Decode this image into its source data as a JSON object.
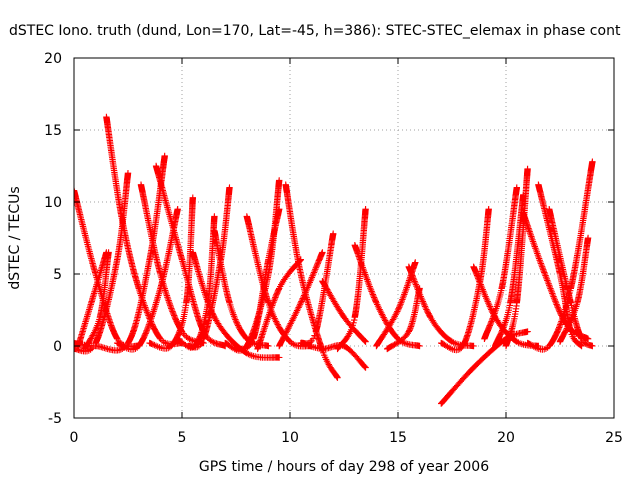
{
  "chart_data": {
    "type": "scatter",
    "title": "dSTEC Iono. truth (dund, Lon=170, Lat=-45, h=386): STEC-STEC_elemax in phase cont",
    "xlabel": "GPS time / hours of day 298 of year 2006",
    "ylabel": "dSTEC  / TECUs",
    "xlim": [
      0,
      25
    ],
    "ylim": [
      -5,
      20
    ],
    "xticks": [
      "0",
      "5",
      "10",
      "15",
      "20",
      "25"
    ],
    "yticks": [
      "-5",
      "0",
      "5",
      "10",
      "15",
      "20"
    ],
    "grid": true,
    "marker": "+",
    "color": "#ff0000",
    "passes": [
      [
        [
          0.0,
          10.8
        ],
        [
          1.0,
          5.0
        ],
        [
          2.0,
          0.5
        ],
        [
          3.0,
          0.0
        ]
      ],
      [
        [
          0.2,
          0.0
        ],
        [
          0.8,
          3.0
        ],
        [
          1.5,
          6.5
        ]
      ],
      [
        [
          0.0,
          -0.2
        ],
        [
          1.0,
          0.2
        ],
        [
          2.0,
          6.0
        ],
        [
          2.5,
          12.0
        ]
      ],
      [
        [
          1.5,
          15.9
        ],
        [
          2.2,
          9.0
        ],
        [
          3.0,
          4.0
        ],
        [
          4.0,
          0.5
        ],
        [
          5.0,
          0.2
        ]
      ],
      [
        [
          0.5,
          -0.2
        ],
        [
          1.2,
          2.0
        ],
        [
          1.6,
          6.5
        ]
      ],
      [
        [
          0.0,
          0.2
        ],
        [
          1.0,
          0.0
        ],
        [
          2.5,
          0.2
        ],
        [
          3.5,
          6.0
        ],
        [
          4.2,
          13.2
        ]
      ],
      [
        [
          3.1,
          11.2
        ],
        [
          4.0,
          5.0
        ],
        [
          5.0,
          1.0
        ],
        [
          6.0,
          0.2
        ]
      ],
      [
        [
          2.0,
          0.2
        ],
        [
          3.0,
          0.0
        ],
        [
          4.0,
          4.0
        ],
        [
          4.8,
          9.5
        ]
      ],
      [
        [
          3.5,
          0.2
        ],
        [
          4.5,
          0.0
        ],
        [
          5.2,
          3.0
        ],
        [
          5.5,
          10.3
        ]
      ],
      [
        [
          3.8,
          12.5
        ],
        [
          5.0,
          6.0
        ],
        [
          6.0,
          1.0
        ],
        [
          7.0,
          0.0
        ]
      ],
      [
        [
          4.8,
          0.5
        ],
        [
          5.6,
          0.0
        ],
        [
          6.2,
          3.0
        ],
        [
          6.5,
          9.0
        ]
      ],
      [
        [
          5.3,
          0.0
        ],
        [
          6.0,
          0.5
        ],
        [
          6.8,
          6.0
        ],
        [
          7.2,
          11.0
        ]
      ],
      [
        [
          5.5,
          6.5
        ],
        [
          6.5,
          2.0
        ],
        [
          8.0,
          -0.5
        ],
        [
          9.5,
          -0.8
        ]
      ],
      [
        [
          6.5,
          8.0
        ],
        [
          7.2,
          3.0
        ],
        [
          8.0,
          0.5
        ],
        [
          9.0,
          0.0
        ]
      ],
      [
        [
          7.0,
          0.2
        ],
        [
          8.0,
          0.0
        ],
        [
          9.0,
          5.0
        ],
        [
          9.5,
          11.5
        ]
      ],
      [
        [
          7.5,
          -0.2
        ],
        [
          8.3,
          0.5
        ],
        [
          9.0,
          6.0
        ],
        [
          9.5,
          9.5
        ]
      ],
      [
        [
          8.0,
          9.0
        ],
        [
          9.0,
          3.0
        ],
        [
          10.0,
          0.3
        ],
        [
          11.0,
          0.0
        ]
      ],
      [
        [
          8.5,
          -0.2
        ],
        [
          9.5,
          4.0
        ],
        [
          10.5,
          6.0
        ]
      ],
      [
        [
          9.8,
          11.2
        ],
        [
          10.5,
          5.0
        ],
        [
          11.5,
          -0.3
        ],
        [
          12.2,
          -2.2
        ]
      ],
      [
        [
          9.5,
          0.0
        ],
        [
          10.5,
          3.0
        ],
        [
          11.5,
          6.5
        ]
      ],
      [
        [
          10.5,
          0.2
        ],
        [
          11.2,
          1.0
        ],
        [
          12.0,
          7.8
        ]
      ],
      [
        [
          10.5,
          0.2
        ],
        [
          11.5,
          -0.2
        ],
        [
          12.5,
          0.0
        ],
        [
          13.5,
          -1.5
        ]
      ],
      [
        [
          11.5,
          4.5
        ],
        [
          12.5,
          2.0
        ],
        [
          13.5,
          0.3
        ]
      ],
      [
        [
          12.2,
          -0.2
        ],
        [
          13.0,
          2.0
        ],
        [
          13.5,
          9.5
        ]
      ],
      [
        [
          13.0,
          7.0
        ],
        [
          14.0,
          3.0
        ],
        [
          15.0,
          0.5
        ],
        [
          16.0,
          0.0
        ]
      ],
      [
        [
          14.5,
          -0.2
        ],
        [
          15.5,
          1.0
        ],
        [
          16.0,
          4.0
        ]
      ],
      [
        [
          14.0,
          0.0
        ],
        [
          15.0,
          2.5
        ],
        [
          15.8,
          5.8
        ]
      ],
      [
        [
          15.5,
          5.5
        ],
        [
          16.5,
          2.0
        ],
        [
          17.5,
          0.3
        ],
        [
          18.5,
          0.0
        ]
      ],
      [
        [
          17.0,
          -4.0
        ],
        [
          18.5,
          -1.5
        ],
        [
          20.0,
          0.5
        ],
        [
          21.0,
          1.0
        ]
      ],
      [
        [
          17.0,
          0.2
        ],
        [
          18.0,
          0.0
        ],
        [
          18.8,
          4.5
        ],
        [
          19.2,
          9.5
        ]
      ],
      [
        [
          18.5,
          5.5
        ],
        [
          19.5,
          2.0
        ],
        [
          20.5,
          0.3
        ],
        [
          21.5,
          0.0
        ]
      ],
      [
        [
          19.0,
          0.5
        ],
        [
          19.8,
          4.0
        ],
        [
          20.5,
          11.0
        ]
      ],
      [
        [
          19.5,
          0.0
        ],
        [
          20.2,
          3.0
        ],
        [
          20.8,
          10.5
        ]
      ],
      [
        [
          20.0,
          0.0
        ],
        [
          20.5,
          3.0
        ],
        [
          21.0,
          12.3
        ]
      ],
      [
        [
          21.5,
          11.2
        ],
        [
          22.5,
          5.0
        ],
        [
          23.0,
          1.0
        ],
        [
          23.5,
          0.0
        ]
      ],
      [
        [
          21.0,
          0.2
        ],
        [
          22.0,
          0.0
        ],
        [
          23.0,
          4.0
        ],
        [
          24.0,
          12.8
        ]
      ],
      [
        [
          22.0,
          9.5
        ],
        [
          23.0,
          3.0
        ],
        [
          23.5,
          0.5
        ],
        [
          24.0,
          0.0
        ]
      ],
      [
        [
          22.5,
          0.3
        ],
        [
          23.3,
          3.0
        ],
        [
          23.8,
          7.5
        ]
      ],
      [
        [
          20.8,
          9.2
        ],
        [
          21.8,
          5.0
        ],
        [
          22.8,
          1.5
        ],
        [
          23.8,
          0.5
        ]
      ]
    ]
  }
}
